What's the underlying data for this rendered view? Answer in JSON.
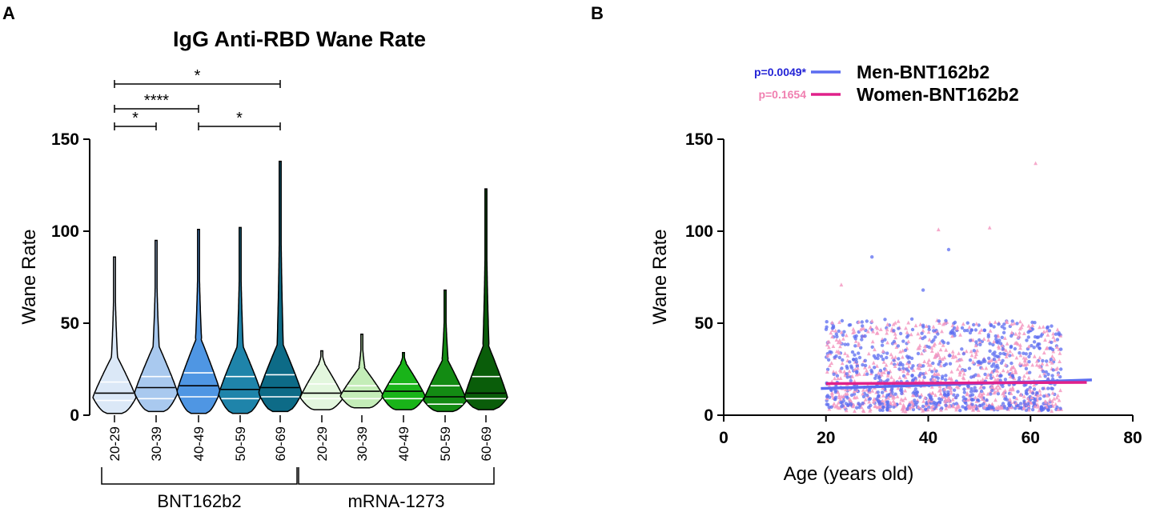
{
  "panels": {
    "a_label": "A",
    "b_label": "B"
  },
  "chart_data": [
    {
      "type": "violin",
      "title": "IgG Anti-RBD Wane Rate",
      "ylabel": "Wane Rate",
      "ylim": [
        0,
        150
      ],
      "yticks": [
        "0",
        "50",
        "100",
        "150"
      ],
      "groups": [
        {
          "name": "BNT162b2",
          "categories": [
            "20-29",
            "30-39",
            "40-49",
            "50-59",
            "60-69"
          ]
        },
        {
          "name": "mRNA-1273",
          "categories": [
            "20-29",
            "30-39",
            "40-49",
            "50-59",
            "60-69"
          ]
        }
      ],
      "violins": [
        {
          "group": "BNT162b2",
          "category": "20-29",
          "color": "#dbe8f7",
          "min": 1,
          "q1": 8,
          "median": 12,
          "q3": 18,
          "max": 86
        },
        {
          "group": "BNT162b2",
          "category": "30-39",
          "color": "#a9c9ef",
          "min": 2,
          "q1": 9,
          "median": 15,
          "q3": 21,
          "max": 95
        },
        {
          "group": "BNT162b2",
          "category": "40-49",
          "color": "#4f96e3",
          "min": 1,
          "q1": 10,
          "median": 16,
          "q3": 23,
          "max": 101
        },
        {
          "group": "BNT162b2",
          "category": "50-59",
          "color": "#1f84aa",
          "min": 1,
          "q1": 9,
          "median": 14,
          "q3": 21,
          "max": 102
        },
        {
          "group": "BNT162b2",
          "category": "60-69",
          "color": "#0d6b87",
          "min": 2,
          "q1": 10,
          "median": 15,
          "q3": 22,
          "max": 138
        },
        {
          "group": "mRNA-1273",
          "category": "20-29",
          "color": "#e3f7de",
          "min": 3,
          "q1": 9,
          "median": 12,
          "q3": 17,
          "max": 35
        },
        {
          "group": "mRNA-1273",
          "category": "30-39",
          "color": "#c4edb8",
          "min": 4,
          "q1": 9,
          "median": 13,
          "q3": 16,
          "max": 44
        },
        {
          "group": "mRNA-1273",
          "category": "40-49",
          "color": "#19b419",
          "min": 3,
          "q1": 9,
          "median": 13,
          "q3": 17,
          "max": 34
        },
        {
          "group": "mRNA-1273",
          "category": "50-59",
          "color": "#138b13",
          "min": 2,
          "q1": 6,
          "median": 10,
          "q3": 16,
          "max": 68
        },
        {
          "group": "mRNA-1273",
          "category": "60-69",
          "color": "#0a5d0a",
          "min": 3,
          "q1": 9,
          "median": 12,
          "q3": 21,
          "max": 123
        }
      ],
      "significance": [
        {
          "from": "20-29",
          "to": "60-69",
          "label": "*"
        },
        {
          "from": "20-29",
          "to": "40-49",
          "label": "****"
        },
        {
          "from": "20-29",
          "to": "30-39",
          "label": "*"
        },
        {
          "from": "40-49",
          "to": "60-69",
          "label": "*"
        }
      ]
    },
    {
      "type": "scatter",
      "xlabel": "Age (years old)",
      "ylabel": "Wane Rate",
      "xlim": [
        0,
        80
      ],
      "ylim": [
        0,
        150
      ],
      "xticks": [
        "0",
        "20",
        "40",
        "60",
        "80"
      ],
      "yticks": [
        "0",
        "50",
        "100",
        "150"
      ],
      "legend_position": "top-left",
      "series": [
        {
          "name": "Men-BNT162b2",
          "p_value": "p=0.0049*",
          "color": "#5b6cf0",
          "p_color": "#2323d6",
          "marker": "circle",
          "trend": {
            "x": [
              19,
              72
            ],
            "y": [
              14.5,
              19.2
            ]
          }
        },
        {
          "name": "Women-BNT162b2",
          "p_value": "p=0.1654",
          "color": "#e0218a",
          "p_color": "#f07fb0",
          "marker": "triangle",
          "point_color": "#f49ac2",
          "trend": {
            "x": [
              20,
              71
            ],
            "y": [
              17.2,
              17.8
            ]
          }
        }
      ],
      "outliers": [
        {
          "series": "Men-BNT162b2",
          "x": 29,
          "y": 86
        },
        {
          "series": "Men-BNT162b2",
          "x": 44,
          "y": 90
        },
        {
          "series": "Women-BNT162b2",
          "x": 42,
          "y": 101
        },
        {
          "series": "Women-BNT162b2",
          "x": 52,
          "y": 102
        },
        {
          "series": "Women-BNT162b2",
          "x": 61,
          "y": 137
        },
        {
          "series": "Men-BNT162b2",
          "x": 39,
          "y": 68
        },
        {
          "series": "Women-BNT162b2",
          "x": 23,
          "y": 71
        }
      ]
    }
  ]
}
